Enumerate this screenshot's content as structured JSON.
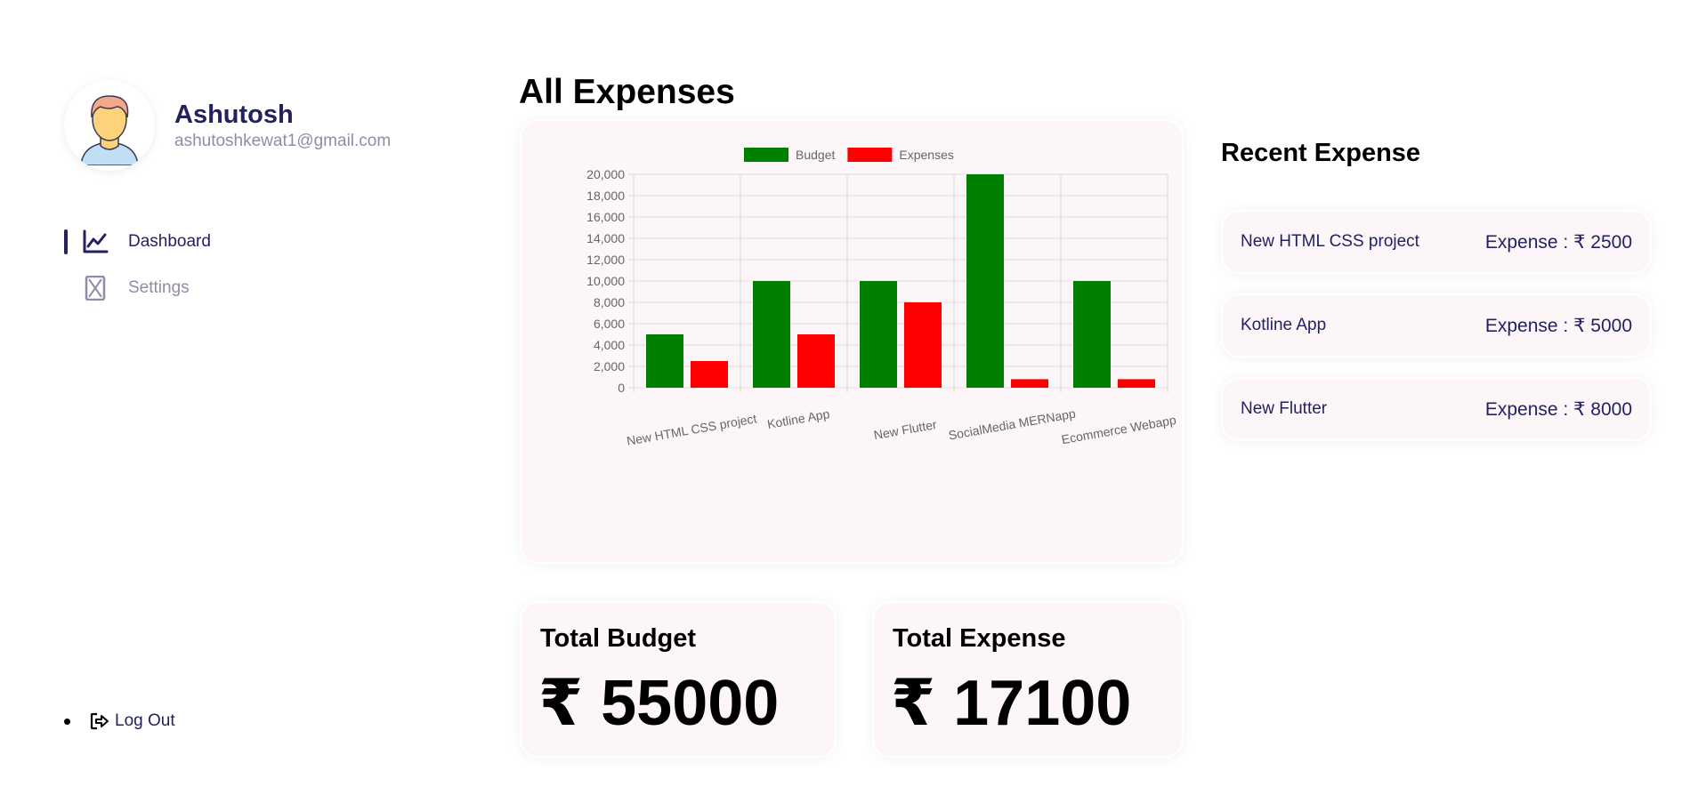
{
  "user": {
    "name": "Ashutosh",
    "email": "ashutoshkewat1@gmail.com"
  },
  "menu": {
    "items": [
      {
        "label": "Dashboard",
        "icon": "chart-line-icon",
        "active": true
      },
      {
        "label": "Settings",
        "icon": "hourglass-icon",
        "active": false
      }
    ],
    "logout_label": "Log Out",
    "logout_icon": "sign-out-icon"
  },
  "main": {
    "title": "All Expenses"
  },
  "totals": {
    "budget_title": "Total Budget",
    "budget_value": "₹ 55000",
    "expense_title": "Total Expense",
    "expense_value": "₹ 17100"
  },
  "recent": {
    "title": "Recent Expense",
    "items": [
      {
        "title": "New HTML CSS project",
        "amount": "Expense : ₹ 2500"
      },
      {
        "title": "Kotline App",
        "amount": "Expense : ₹ 5000"
      },
      {
        "title": "New Flutter",
        "amount": "Expense : ₹ 8000"
      }
    ]
  },
  "colors": {
    "primary": "#222260",
    "muted": "#8d8da8",
    "budget": "#008000",
    "expenses": "#ff0000",
    "card_bg": "#fcf6f9"
  },
  "chart_data": {
    "type": "bar",
    "categories": [
      "New HTML CSS project",
      "Kotline App",
      "New Flutter",
      "SocialMedia MERNapp",
      "Ecommerce Webapp"
    ],
    "series": [
      {
        "name": "Budget",
        "color": "#008000",
        "values": [
          5000,
          10000,
          10000,
          20000,
          10000
        ]
      },
      {
        "name": "Expenses",
        "color": "#ff0000",
        "values": [
          2500,
          5000,
          8000,
          800,
          800
        ]
      }
    ],
    "yticks": [
      "0",
      "2,000",
      "4,000",
      "6,000",
      "8,000",
      "10,000",
      "12,000",
      "14,000",
      "16,000",
      "18,000",
      "20,000"
    ],
    "ylim": [
      0,
      20000
    ],
    "grid": true,
    "legend_position": "top"
  }
}
